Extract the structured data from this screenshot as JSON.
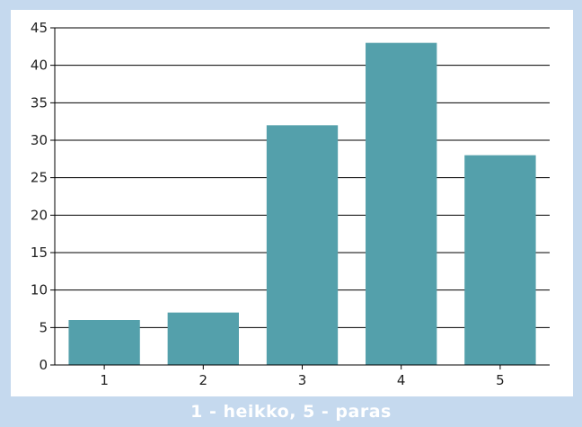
{
  "chart_data": {
    "type": "bar",
    "categories": [
      "1",
      "2",
      "3",
      "4",
      "5"
    ],
    "values": [
      6,
      7,
      32,
      43,
      28
    ],
    "title": "",
    "xlabel": "1 - heikko, 5 - paras",
    "ylabel": "",
    "ylim": [
      0,
      45
    ],
    "yticks": [
      "0",
      "5",
      "10",
      "15",
      "20",
      "25",
      "30",
      "35",
      "40",
      "45"
    ],
    "grid": true,
    "bar_color": "#54a0ab",
    "legend": "none"
  }
}
